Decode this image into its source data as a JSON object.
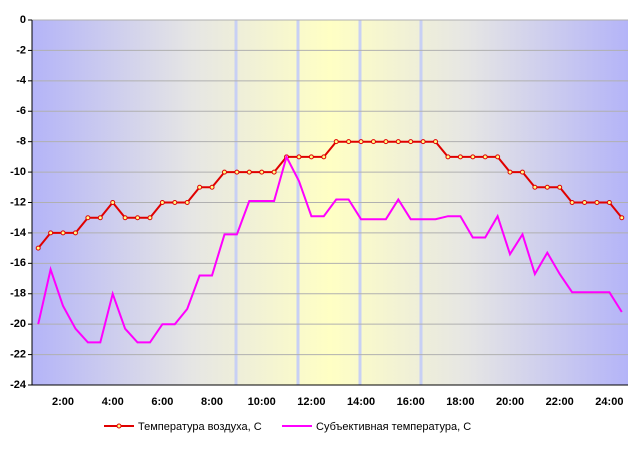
{
  "chart_data": {
    "type": "line",
    "categories": [
      null,
      null,
      "2:00",
      null,
      null,
      null,
      "4:00",
      null,
      null,
      null,
      "6:00",
      null,
      null,
      null,
      "8:00",
      null,
      null,
      null,
      "10:00",
      null,
      null,
      null,
      "12:00",
      null,
      null,
      null,
      "14:00",
      null,
      null,
      null,
      "16:00",
      null,
      null,
      null,
      "18:00",
      null,
      null,
      null,
      "20:00",
      null,
      null,
      null,
      "22:00",
      null,
      null,
      null,
      "24:00",
      null
    ],
    "series": [
      {
        "name": "Температура воздуха, С",
        "color": "#e00000",
        "markers": true,
        "values": [
          -15,
          -14,
          -14,
          -14,
          -13,
          -13,
          -12,
          -13,
          -13,
          -13,
          -12,
          -12,
          -12,
          -11,
          -11,
          -10,
          -10,
          -10,
          -10,
          -10,
          -9,
          -9,
          -9,
          -9,
          -8,
          -8,
          -8,
          -8,
          -8,
          -8,
          -8,
          -8,
          -8,
          -9,
          -9,
          -9,
          -9,
          -9,
          -10,
          -10,
          -11,
          -11,
          -11,
          -12,
          -12,
          -12,
          -12,
          -13
        ]
      },
      {
        "name": "Субъективная температура, С",
        "color": "#ff00ff",
        "markers": false,
        "values": [
          -20,
          -16.4,
          -18.8,
          -20.3,
          -21.2,
          -21.2,
          -18,
          -20.3,
          -21.2,
          -21.2,
          -20,
          -20,
          -19,
          -16.8,
          -16.8,
          -14.1,
          -14.1,
          -11.9,
          -11.9,
          -11.9,
          -9,
          -10.6,
          -12.9,
          -12.9,
          -11.8,
          -11.8,
          -13.1,
          -13.1,
          -13.1,
          -11.8,
          -13.1,
          -13.1,
          -13.1,
          -12.9,
          -12.9,
          -14.3,
          -14.3,
          -12.9,
          -15.4,
          -14.1,
          -16.7,
          -15.3,
          -16.7,
          -17.9,
          -17.9,
          -17.9,
          -17.9,
          -19.2
        ]
      }
    ],
    "ylim": [
      -24,
      0
    ],
    "yticks": [
      0,
      -2,
      -4,
      -6,
      -8,
      -10,
      -12,
      -14,
      -16,
      -18,
      -20,
      -22,
      -24
    ],
    "grid": true,
    "legend": "bottom"
  }
}
